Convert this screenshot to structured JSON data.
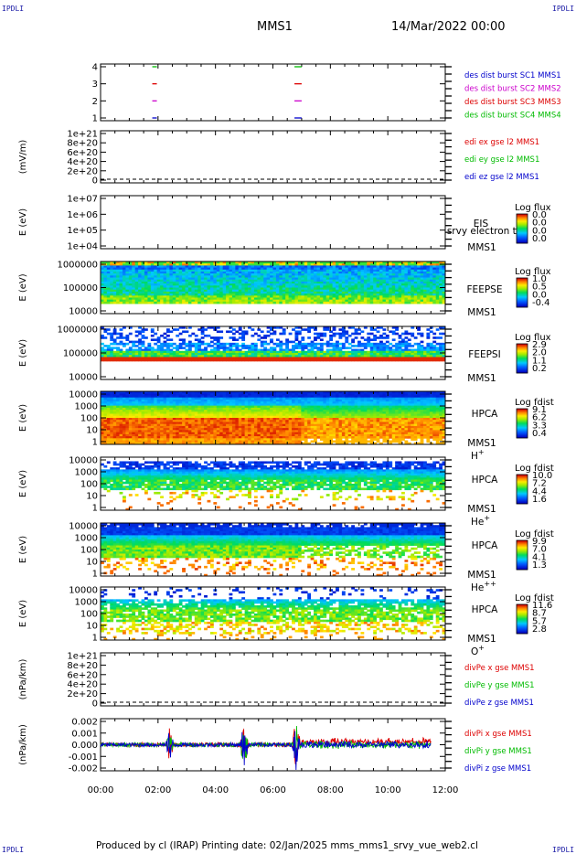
{
  "corners": {
    "label": "IPDLI"
  },
  "header": {
    "title": "MMS1",
    "date": "14/Mar/2022 00:00"
  },
  "footer": {
    "text": "Produced by cl (IRAP)   Printing date: 02/Jan/2025   mms_mms1_srvy_vue_web2.cl"
  },
  "x_axis": {
    "ticks": [
      "00:00",
      "02:00",
      "04:00",
      "06:00",
      "08:00",
      "10:00",
      "12:00"
    ]
  },
  "chart_data": [
    {
      "type": "line",
      "id": "burst",
      "yticks": [
        "1",
        "2",
        "3",
        "4"
      ],
      "ylim": [
        0.5,
        4.5
      ],
      "series": [
        {
          "name": "des dist burst SC1 MMS1",
          "color": "#0000cc",
          "y": 1,
          "x_ranges": [
            [
              1.8,
              1.85
            ],
            [
              6.75,
              7.0
            ]
          ]
        },
        {
          "name": "des dist burst SC2 MMS2",
          "color": "#cc00cc",
          "y": 2,
          "x_ranges": [
            [
              1.8,
              1.85
            ],
            [
              6.75,
              7.0
            ]
          ]
        },
        {
          "name": "des dist burst SC3 MMS3",
          "color": "#dd0000",
          "y": 3,
          "x_ranges": [
            [
              1.8,
              1.85
            ],
            [
              6.75,
              7.0
            ]
          ]
        },
        {
          "name": "des dist burst SC4 MMS4",
          "color": "#00bb00",
          "y": 4,
          "x_ranges": [
            [
              1.8,
              1.85
            ],
            [
              6.75,
              7.0
            ]
          ]
        }
      ]
    },
    {
      "type": "line",
      "id": "edi",
      "ylabel": "(mV/m)",
      "yticks": [
        "1e+21",
        "8e+20",
        "6e+20",
        "4e+20",
        "2e+20",
        "0"
      ],
      "series": [
        {
          "name": "edi ex gse l2 MMS1",
          "color": "#dd0000"
        },
        {
          "name": "edi ey gse l2 MMS1",
          "color": "#00bb00"
        },
        {
          "name": "edi ez gse l2 MMS1",
          "color": "#0000cc"
        }
      ]
    },
    {
      "type": "heatmap",
      "id": "eis",
      "ylabel": "E (eV)",
      "yticks": [
        "1e+07",
        "1e+06",
        "1e+05",
        "1e+04"
      ],
      "instrument": "EIS",
      "subtitle": "srvy electron to",
      "probe": "MMS1",
      "colorbar": {
        "title": "Log flux",
        "ticks": [
          "0.0",
          "0.0",
          "0.0",
          "0.0"
        ]
      },
      "empty": true
    },
    {
      "type": "heatmap",
      "id": "feepse",
      "ylabel": "E (eV)",
      "yticks": [
        "1000000",
        "100000",
        "10000"
      ],
      "instrument": "FEEPSE",
      "probe": "MMS1",
      "colorbar": {
        "title": "Log flux",
        "ticks": [
          "1.0",
          "0.5",
          "0.0",
          "-0.4"
        ]
      }
    },
    {
      "type": "heatmap",
      "id": "feepsi",
      "ylabel": "E (eV)",
      "yticks": [
        "1000000",
        "100000",
        "10000"
      ],
      "instrument": "FEEPSI",
      "probe": "MMS1",
      "colorbar": {
        "title": "Log flux",
        "ticks": [
          "2.9",
          "2.0",
          "1.1",
          "0.2"
        ]
      }
    },
    {
      "type": "heatmap",
      "id": "hpca_h",
      "ylabel": "E (eV)",
      "yticks": [
        "10000",
        "1000",
        "100",
        "10",
        "1"
      ],
      "instrument": "HPCA",
      "probe": "MMS1",
      "species": "H",
      "charge": "+",
      "colorbar": {
        "title": "Log fdist",
        "ticks": [
          "9.1",
          "6.2",
          "3.3",
          "0.4"
        ]
      }
    },
    {
      "type": "heatmap",
      "id": "hpca_he",
      "ylabel": "E (eV)",
      "yticks": [
        "10000",
        "1000",
        "100",
        "10",
        "1"
      ],
      "instrument": "HPCA",
      "probe": "MMS1",
      "species": "He",
      "charge": "+",
      "colorbar": {
        "title": "Log fdist",
        "ticks": [
          "10.0",
          "7.2",
          "4.4",
          "1.6"
        ]
      }
    },
    {
      "type": "heatmap",
      "id": "hpca_he2",
      "ylabel": "E (eV)",
      "yticks": [
        "10000",
        "1000",
        "100",
        "10",
        "1"
      ],
      "instrument": "HPCA",
      "probe": "MMS1",
      "species": "He",
      "charge": "++",
      "colorbar": {
        "title": "Log fdist",
        "ticks": [
          "9.9",
          "7.0",
          "4.1",
          "1.3"
        ]
      }
    },
    {
      "type": "heatmap",
      "id": "hpca_o",
      "ylabel": "E (eV)",
      "yticks": [
        "10000",
        "1000",
        "100",
        "10",
        "1"
      ],
      "instrument": "HPCA",
      "probe": "MMS1",
      "species": "O",
      "charge": "+",
      "colorbar": {
        "title": "Log fdist",
        "ticks": [
          "11.6",
          "8.7",
          "5.7",
          "2.8"
        ]
      }
    },
    {
      "type": "line",
      "id": "divpe",
      "ylabel": "(nPa/km)",
      "yticks": [
        "1e+21",
        "8e+20",
        "6e+20",
        "4e+20",
        "2e+20",
        "0"
      ],
      "series": [
        {
          "name": "divPe x gse MMS1",
          "color": "#dd0000"
        },
        {
          "name": "divPe y gse MMS1",
          "color": "#00bb00"
        },
        {
          "name": "divPe z gse MMS1",
          "color": "#0000cc"
        }
      ]
    },
    {
      "type": "line",
      "id": "divpi",
      "ylabel": "(nPa/km)",
      "yticks": [
        "0.002",
        "0.001",
        "0.000",
        "-0.001",
        "-0.002"
      ],
      "ylim": [
        -0.0025,
        0.0025
      ],
      "xlim": [
        0,
        12
      ],
      "series": [
        {
          "name": "divPi x gse MMS1",
          "color": "#dd0000"
        },
        {
          "name": "divPi y gse MMS1",
          "color": "#00bb00"
        },
        {
          "name": "divPi z gse MMS1",
          "color": "#0000cc"
        }
      ]
    }
  ]
}
